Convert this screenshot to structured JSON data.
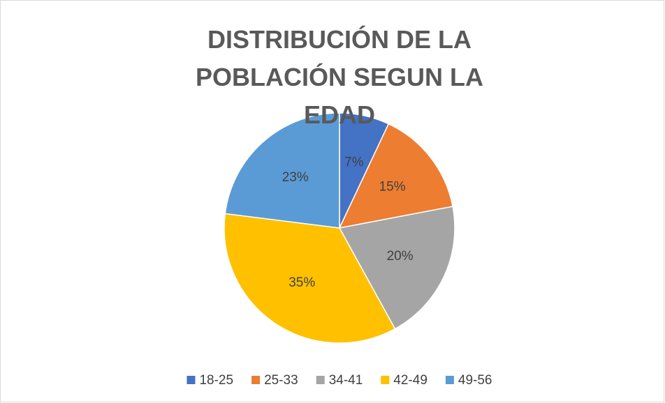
{
  "chart_data": {
    "type": "pie",
    "title": "DISTRIBUCIÓN DE LA POBLACIÓN SEGUN LA EDAD",
    "categories": [
      "18-25",
      "25-33",
      "34-41",
      "42-49",
      "49-56"
    ],
    "values": [
      7,
      15,
      20,
      35,
      23
    ],
    "value_labels": [
      "7%",
      "15%",
      "20%",
      "35%",
      "23%"
    ],
    "colors": [
      "#4472c4",
      "#ed7d31",
      "#a5a5a5",
      "#ffc000",
      "#5b9bd5"
    ],
    "legend": "bottom"
  }
}
